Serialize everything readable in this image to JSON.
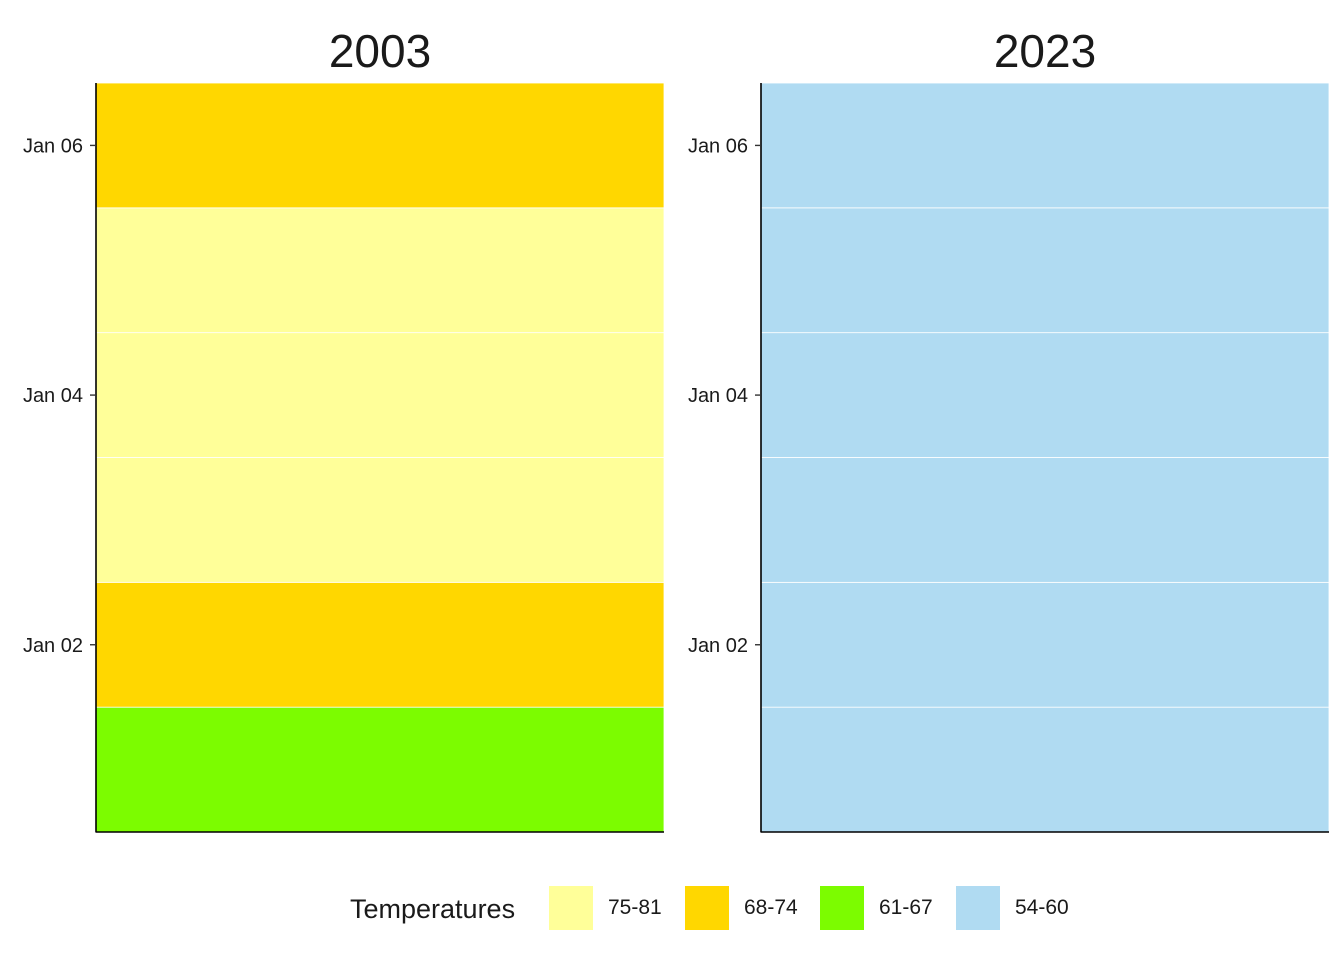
{
  "chart_data": {
    "type": "heatmap",
    "facets": [
      {
        "title": "2003",
        "days": [
          "Jan 01",
          "Jan 02",
          "Jan 03",
          "Jan 04",
          "Jan 05",
          "Jan 06"
        ],
        "categories": [
          "61-67",
          "68-74",
          "75-81",
          "75-81",
          "75-81",
          "68-74"
        ]
      },
      {
        "title": "2023",
        "days": [
          "Jan 01",
          "Jan 02",
          "Jan 03",
          "Jan 04",
          "Jan 05",
          "Jan 06"
        ],
        "categories": [
          "54-60",
          "54-60",
          "54-60",
          "54-60",
          "54-60",
          "54-60"
        ]
      }
    ],
    "y_tick_labels": [
      "Jan 02",
      "Jan 04",
      "Jan 06"
    ],
    "y_tick_days": [
      "Jan 02",
      "Jan 04",
      "Jan 06"
    ],
    "xlabel": "",
    "ylabel": "",
    "grid": false,
    "legend": {
      "title": "Temperatures",
      "position": "bottom",
      "items": [
        {
          "label": "75-81",
          "color": "#FFFF99"
        },
        {
          "label": "68-74",
          "color": "#FFD700"
        },
        {
          "label": "61-67",
          "color": "#7CFC00"
        },
        {
          "label": "54-60",
          "color": "#B0DBF2"
        }
      ]
    }
  }
}
